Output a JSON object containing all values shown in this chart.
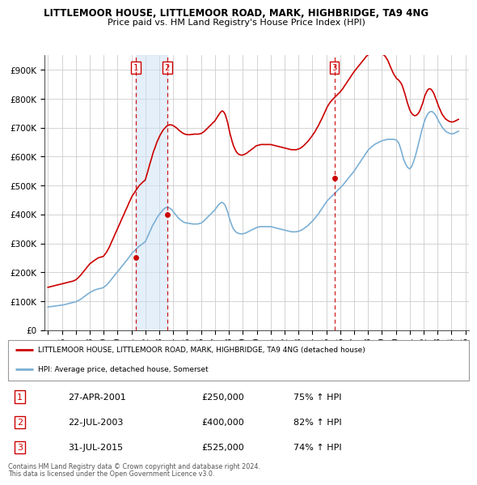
{
  "title": "LITTLEMOOR HOUSE, LITTLEMOOR ROAD, MARK, HIGHBRIDGE, TA9 4NG",
  "subtitle": "Price paid vs. HM Land Registry's House Price Index (HPI)",
  "hpi_label": "HPI: Average price, detached house, Somerset",
  "property_label": "LITTLEMOOR HOUSE, LITTLEMOOR ROAD, MARK, HIGHBRIDGE, TA9 4NG (detached house)",
  "red_line_color": "#cc0000",
  "blue_line_color": "#7bafd4",
  "background_color": "#ffffff",
  "grid_color": "#cccccc",
  "transactions": [
    {
      "num": 1,
      "date": "27-APR-2001",
      "year": 2001.32,
      "price": 250000,
      "pct": "75%",
      "dir": "↑"
    },
    {
      "num": 2,
      "date": "22-JUL-2003",
      "year": 2003.56,
      "price": 400000,
      "pct": "82%",
      "dir": "↑"
    },
    {
      "num": 3,
      "date": "31-JUL-2015",
      "year": 2015.58,
      "price": 525000,
      "pct": "74%",
      "dir": "↑"
    }
  ],
  "footnote1": "Contains HM Land Registry data © Crown copyright and database right 2024.",
  "footnote2": "This data is licensed under the Open Government Licence v3.0.",
  "hpi_data_years": [
    1995.0,
    1995.08,
    1995.17,
    1995.25,
    1995.33,
    1995.42,
    1995.5,
    1995.58,
    1995.67,
    1995.75,
    1995.83,
    1995.92,
    1996.0,
    1996.08,
    1996.17,
    1996.25,
    1996.33,
    1996.42,
    1996.5,
    1996.58,
    1996.67,
    1996.75,
    1996.83,
    1996.92,
    1997.0,
    1997.08,
    1997.17,
    1997.25,
    1997.33,
    1997.42,
    1997.5,
    1997.58,
    1997.67,
    1997.75,
    1997.83,
    1997.92,
    1998.0,
    1998.08,
    1998.17,
    1998.25,
    1998.33,
    1998.42,
    1998.5,
    1998.58,
    1998.67,
    1998.75,
    1998.83,
    1998.92,
    1999.0,
    1999.08,
    1999.17,
    1999.25,
    1999.33,
    1999.42,
    1999.5,
    1999.58,
    1999.67,
    1999.75,
    1999.83,
    1999.92,
    2000.0,
    2000.08,
    2000.17,
    2000.25,
    2000.33,
    2000.42,
    2000.5,
    2000.58,
    2000.67,
    2000.75,
    2000.83,
    2000.92,
    2001.0,
    2001.08,
    2001.17,
    2001.25,
    2001.33,
    2001.42,
    2001.5,
    2001.58,
    2001.67,
    2001.75,
    2001.83,
    2001.92,
    2002.0,
    2002.08,
    2002.17,
    2002.25,
    2002.33,
    2002.42,
    2002.5,
    2002.58,
    2002.67,
    2002.75,
    2002.83,
    2002.92,
    2003.0,
    2003.08,
    2003.17,
    2003.25,
    2003.33,
    2003.42,
    2003.5,
    2003.58,
    2003.67,
    2003.75,
    2003.83,
    2003.92,
    2004.0,
    2004.08,
    2004.17,
    2004.25,
    2004.33,
    2004.42,
    2004.5,
    2004.58,
    2004.67,
    2004.75,
    2004.83,
    2004.92,
    2005.0,
    2005.08,
    2005.17,
    2005.25,
    2005.33,
    2005.42,
    2005.5,
    2005.58,
    2005.67,
    2005.75,
    2005.83,
    2005.92,
    2006.0,
    2006.08,
    2006.17,
    2006.25,
    2006.33,
    2006.42,
    2006.5,
    2006.58,
    2006.67,
    2006.75,
    2006.83,
    2006.92,
    2007.0,
    2007.08,
    2007.17,
    2007.25,
    2007.33,
    2007.42,
    2007.5,
    2007.58,
    2007.67,
    2007.75,
    2007.83,
    2007.92,
    2008.0,
    2008.08,
    2008.17,
    2008.25,
    2008.33,
    2008.42,
    2008.5,
    2008.58,
    2008.67,
    2008.75,
    2008.83,
    2008.92,
    2009.0,
    2009.08,
    2009.17,
    2009.25,
    2009.33,
    2009.42,
    2009.5,
    2009.58,
    2009.67,
    2009.75,
    2009.83,
    2009.92,
    2010.0,
    2010.08,
    2010.17,
    2010.25,
    2010.33,
    2010.42,
    2010.5,
    2010.58,
    2010.67,
    2010.75,
    2010.83,
    2010.92,
    2011.0,
    2011.08,
    2011.17,
    2011.25,
    2011.33,
    2011.42,
    2011.5,
    2011.58,
    2011.67,
    2011.75,
    2011.83,
    2011.92,
    2012.0,
    2012.08,
    2012.17,
    2012.25,
    2012.33,
    2012.42,
    2012.5,
    2012.58,
    2012.67,
    2012.75,
    2012.83,
    2012.92,
    2013.0,
    2013.08,
    2013.17,
    2013.25,
    2013.33,
    2013.42,
    2013.5,
    2013.58,
    2013.67,
    2013.75,
    2013.83,
    2013.92,
    2014.0,
    2014.08,
    2014.17,
    2014.25,
    2014.33,
    2014.42,
    2014.5,
    2014.58,
    2014.67,
    2014.75,
    2014.83,
    2014.92,
    2015.0,
    2015.08,
    2015.17,
    2015.25,
    2015.33,
    2015.42,
    2015.5,
    2015.58,
    2015.67,
    2015.75,
    2015.83,
    2015.92,
    2016.0,
    2016.08,
    2016.17,
    2016.25,
    2016.33,
    2016.42,
    2016.5,
    2016.58,
    2016.67,
    2016.75,
    2016.83,
    2016.92,
    2017.0,
    2017.08,
    2017.17,
    2017.25,
    2017.33,
    2017.42,
    2017.5,
    2017.58,
    2017.67,
    2017.75,
    2017.83,
    2017.92,
    2018.0,
    2018.08,
    2018.17,
    2018.25,
    2018.33,
    2018.42,
    2018.5,
    2018.58,
    2018.67,
    2018.75,
    2018.83,
    2018.92,
    2019.0,
    2019.08,
    2019.17,
    2019.25,
    2019.33,
    2019.42,
    2019.5,
    2019.58,
    2019.67,
    2019.75,
    2019.83,
    2019.92,
    2020.0,
    2020.08,
    2020.17,
    2020.25,
    2020.33,
    2020.42,
    2020.5,
    2020.58,
    2020.67,
    2020.75,
    2020.83,
    2020.92,
    2021.0,
    2021.08,
    2021.17,
    2021.25,
    2021.33,
    2021.42,
    2021.5,
    2021.58,
    2021.67,
    2021.75,
    2021.83,
    2021.92,
    2022.0,
    2022.08,
    2022.17,
    2022.25,
    2022.33,
    2022.42,
    2022.5,
    2022.58,
    2022.67,
    2022.75,
    2022.83,
    2022.92,
    2023.0,
    2023.08,
    2023.17,
    2023.25,
    2023.33,
    2023.42,
    2023.5,
    2023.58,
    2023.67,
    2023.75,
    2023.83,
    2023.92,
    2024.0,
    2024.08,
    2024.17,
    2024.25,
    2024.33,
    2024.42,
    2024.5
  ],
  "hpi_data_values": [
    80000,
    80500,
    81000,
    81500,
    82000,
    82500,
    83000,
    83500,
    84000,
    84500,
    85000,
    85500,
    86000,
    87000,
    88000,
    89000,
    90000,
    91000,
    92000,
    93000,
    94000,
    95000,
    96000,
    97000,
    98000,
    100000,
    102000,
    104000,
    106000,
    109000,
    112000,
    115000,
    118000,
    121000,
    124000,
    127000,
    130000,
    132000,
    134000,
    136000,
    138000,
    140000,
    141000,
    142000,
    143000,
    144000,
    145000,
    146000,
    148000,
    151000,
    154000,
    158000,
    162000,
    167000,
    172000,
    177000,
    182000,
    187000,
    192000,
    197000,
    202000,
    207000,
    212000,
    217000,
    222000,
    227000,
    232000,
    237000,
    242000,
    247000,
    252000,
    258000,
    264000,
    268000,
    272000,
    276000,
    280000,
    284000,
    288000,
    291000,
    294000,
    297000,
    300000,
    303000,
    306000,
    315000,
    324000,
    333000,
    342000,
    351000,
    360000,
    367000,
    374000,
    381000,
    388000,
    395000,
    400000,
    405000,
    410000,
    415000,
    419000,
    422000,
    424000,
    425000,
    424000,
    422000,
    419000,
    415000,
    410000,
    405000,
    400000,
    395000,
    390000,
    386000,
    382000,
    379000,
    376000,
    374000,
    372000,
    371000,
    370000,
    370000,
    369000,
    368000,
    368000,
    367000,
    367000,
    367000,
    367000,
    367000,
    368000,
    369000,
    370000,
    373000,
    376000,
    380000,
    384000,
    388000,
    392000,
    396000,
    400000,
    404000,
    408000,
    412000,
    416000,
    422000,
    428000,
    433000,
    437000,
    440000,
    442000,
    440000,
    436000,
    430000,
    420000,
    408000,
    394000,
    380000,
    368000,
    358000,
    350000,
    344000,
    340000,
    337000,
    335000,
    334000,
    333000,
    333000,
    333000,
    334000,
    335000,
    337000,
    339000,
    341000,
    343000,
    345000,
    347000,
    349000,
    351000,
    353000,
    355000,
    356000,
    357000,
    358000,
    358000,
    358000,
    358000,
    358000,
    358000,
    358000,
    358000,
    358000,
    358000,
    357000,
    356000,
    355000,
    354000,
    353000,
    352000,
    351000,
    350000,
    349000,
    348000,
    347000,
    346000,
    345000,
    344000,
    343000,
    342000,
    341000,
    340000,
    340000,
    340000,
    340000,
    340000,
    341000,
    342000,
    343000,
    345000,
    347000,
    349000,
    352000,
    355000,
    358000,
    361000,
    365000,
    369000,
    373000,
    377000,
    381000,
    386000,
    391000,
    396000,
    401000,
    407000,
    413000,
    419000,
    425000,
    431000,
    437000,
    443000,
    448000,
    452000,
    456000,
    460000,
    464000,
    468000,
    472000,
    476000,
    480000,
    484000,
    488000,
    492000,
    496000,
    500000,
    505000,
    510000,
    515000,
    520000,
    525000,
    530000,
    535000,
    540000,
    545000,
    550000,
    556000,
    562000,
    568000,
    574000,
    580000,
    586000,
    592000,
    598000,
    604000,
    610000,
    616000,
    622000,
    626000,
    630000,
    634000,
    637000,
    640000,
    643000,
    645000,
    647000,
    649000,
    651000,
    653000,
    655000,
    656000,
    657000,
    658000,
    659000,
    660000,
    660000,
    660000,
    660000,
    660000,
    660000,
    659000,
    658000,
    655000,
    650000,
    642000,
    630000,
    616000,
    600000,
    588000,
    578000,
    570000,
    564000,
    560000,
    558000,
    562000,
    570000,
    580000,
    592000,
    605000,
    620000,
    636000,
    652000,
    668000,
    684000,
    700000,
    714000,
    726000,
    736000,
    744000,
    750000,
    754000,
    756000,
    756000,
    754000,
    750000,
    745000,
    738000,
    730000,
    722000,
    715000,
    708000,
    702000,
    696000,
    692000,
    688000,
    685000,
    683000,
    681000,
    680000,
    679000,
    679000,
    680000,
    682000,
    684000,
    686000,
    688000
  ],
  "red_data_years": [
    1995.0,
    1995.08,
    1995.17,
    1995.25,
    1995.33,
    1995.42,
    1995.5,
    1995.58,
    1995.67,
    1995.75,
    1995.83,
    1995.92,
    1996.0,
    1996.08,
    1996.17,
    1996.25,
    1996.33,
    1996.42,
    1996.5,
    1996.58,
    1996.67,
    1996.75,
    1996.83,
    1996.92,
    1997.0,
    1997.08,
    1997.17,
    1997.25,
    1997.33,
    1997.42,
    1997.5,
    1997.58,
    1997.67,
    1997.75,
    1997.83,
    1997.92,
    1998.0,
    1998.08,
    1998.17,
    1998.25,
    1998.33,
    1998.42,
    1998.5,
    1998.58,
    1998.67,
    1998.75,
    1998.83,
    1998.92,
    1999.0,
    1999.08,
    1999.17,
    1999.25,
    1999.33,
    1999.42,
    1999.5,
    1999.58,
    1999.67,
    1999.75,
    1999.83,
    1999.92,
    2000.0,
    2000.08,
    2000.17,
    2000.25,
    2000.33,
    2000.42,
    2000.5,
    2000.58,
    2000.67,
    2000.75,
    2000.83,
    2000.92,
    2001.0,
    2001.08,
    2001.17,
    2001.25,
    2001.33,
    2001.42,
    2001.5,
    2001.58,
    2001.67,
    2001.75,
    2001.83,
    2001.92,
    2002.0,
    2002.08,
    2002.17,
    2002.25,
    2002.33,
    2002.42,
    2002.5,
    2002.58,
    2002.67,
    2002.75,
    2002.83,
    2002.92,
    2003.0,
    2003.08,
    2003.17,
    2003.25,
    2003.33,
    2003.42,
    2003.5,
    2003.58,
    2003.67,
    2003.75,
    2003.83,
    2003.92,
    2004.0,
    2004.08,
    2004.17,
    2004.25,
    2004.33,
    2004.42,
    2004.5,
    2004.58,
    2004.67,
    2004.75,
    2004.83,
    2004.92,
    2005.0,
    2005.08,
    2005.17,
    2005.25,
    2005.33,
    2005.42,
    2005.5,
    2005.58,
    2005.67,
    2005.75,
    2005.83,
    2005.92,
    2006.0,
    2006.08,
    2006.17,
    2006.25,
    2006.33,
    2006.42,
    2006.5,
    2006.58,
    2006.67,
    2006.75,
    2006.83,
    2006.92,
    2007.0,
    2007.08,
    2007.17,
    2007.25,
    2007.33,
    2007.42,
    2007.5,
    2007.58,
    2007.67,
    2007.75,
    2007.83,
    2007.92,
    2008.0,
    2008.08,
    2008.17,
    2008.25,
    2008.33,
    2008.42,
    2008.5,
    2008.58,
    2008.67,
    2008.75,
    2008.83,
    2008.92,
    2009.0,
    2009.08,
    2009.17,
    2009.25,
    2009.33,
    2009.42,
    2009.5,
    2009.58,
    2009.67,
    2009.75,
    2009.83,
    2009.92,
    2010.0,
    2010.08,
    2010.17,
    2010.25,
    2010.33,
    2010.42,
    2010.5,
    2010.58,
    2010.67,
    2010.75,
    2010.83,
    2010.92,
    2011.0,
    2011.08,
    2011.17,
    2011.25,
    2011.33,
    2011.42,
    2011.5,
    2011.58,
    2011.67,
    2011.75,
    2011.83,
    2011.92,
    2012.0,
    2012.08,
    2012.17,
    2012.25,
    2012.33,
    2012.42,
    2012.5,
    2012.58,
    2012.67,
    2012.75,
    2012.83,
    2012.92,
    2013.0,
    2013.08,
    2013.17,
    2013.25,
    2013.33,
    2013.42,
    2013.5,
    2013.58,
    2013.67,
    2013.75,
    2013.83,
    2013.92,
    2014.0,
    2014.08,
    2014.17,
    2014.25,
    2014.33,
    2014.42,
    2014.5,
    2014.58,
    2014.67,
    2014.75,
    2014.83,
    2014.92,
    2015.0,
    2015.08,
    2015.17,
    2015.25,
    2015.33,
    2015.42,
    2015.5,
    2015.58,
    2015.67,
    2015.75,
    2015.83,
    2015.92,
    2016.0,
    2016.08,
    2016.17,
    2016.25,
    2016.33,
    2016.42,
    2016.5,
    2016.58,
    2016.67,
    2016.75,
    2016.83,
    2016.92,
    2017.0,
    2017.08,
    2017.17,
    2017.25,
    2017.33,
    2017.42,
    2017.5,
    2017.58,
    2017.67,
    2017.75,
    2017.83,
    2017.92,
    2018.0,
    2018.08,
    2018.17,
    2018.25,
    2018.33,
    2018.42,
    2018.5,
    2018.58,
    2018.67,
    2018.75,
    2018.83,
    2018.92,
    2019.0,
    2019.08,
    2019.17,
    2019.25,
    2019.33,
    2019.42,
    2019.5,
    2019.58,
    2019.67,
    2019.75,
    2019.83,
    2019.92,
    2020.0,
    2020.08,
    2020.17,
    2020.25,
    2020.33,
    2020.42,
    2020.5,
    2020.58,
    2020.67,
    2020.75,
    2020.83,
    2020.92,
    2021.0,
    2021.08,
    2021.17,
    2021.25,
    2021.33,
    2021.42,
    2021.5,
    2021.58,
    2021.67,
    2021.75,
    2021.83,
    2021.92,
    2022.0,
    2022.08,
    2022.17,
    2022.25,
    2022.33,
    2022.42,
    2022.5,
    2022.58,
    2022.67,
    2022.75,
    2022.83,
    2022.92,
    2023.0,
    2023.08,
    2023.17,
    2023.25,
    2023.33,
    2023.42,
    2023.5,
    2023.58,
    2023.67,
    2023.75,
    2023.83,
    2023.92,
    2024.0,
    2024.08,
    2024.17,
    2024.25,
    2024.33,
    2024.42,
    2024.5
  ],
  "red_data_values": [
    148000,
    149000,
    150000,
    151000,
    152000,
    153000,
    154000,
    155000,
    156000,
    157000,
    158000,
    159000,
    160000,
    161000,
    162000,
    163000,
    164000,
    165000,
    166000,
    167000,
    168000,
    169000,
    170000,
    172000,
    174000,
    177000,
    181000,
    185000,
    189000,
    194000,
    199000,
    204000,
    209000,
    214000,
    219000,
    224000,
    229000,
    232000,
    235000,
    238000,
    241000,
    244000,
    247000,
    249000,
    251000,
    252000,
    253000,
    254000,
    256000,
    261000,
    267000,
    273000,
    280000,
    288000,
    297000,
    306000,
    315000,
    324000,
    333000,
    342000,
    351000,
    360000,
    369000,
    378000,
    387000,
    396000,
    405000,
    414000,
    423000,
    432000,
    441000,
    450000,
    459000,
    466000,
    472000,
    478000,
    484000,
    490000,
    496000,
    501000,
    505000,
    509000,
    513000,
    516000,
    520000,
    534000,
    548000,
    562000,
    576000,
    590000,
    604000,
    617000,
    628000,
    639000,
    650000,
    660000,
    668000,
    676000,
    683000,
    690000,
    695000,
    700000,
    704000,
    707000,
    709000,
    710000,
    710000,
    709000,
    707000,
    705000,
    702000,
    699000,
    695000,
    691000,
    688000,
    685000,
    682000,
    680000,
    678000,
    677000,
    676000,
    676000,
    676000,
    676000,
    677000,
    677000,
    678000,
    678000,
    678000,
    678000,
    678000,
    679000,
    680000,
    682000,
    685000,
    688000,
    692000,
    696000,
    700000,
    704000,
    708000,
    712000,
    716000,
    720000,
    724000,
    730000,
    737000,
    743000,
    749000,
    754000,
    758000,
    757000,
    752000,
    744000,
    732000,
    716000,
    698000,
    680000,
    664000,
    650000,
    638000,
    628000,
    620000,
    614000,
    610000,
    607000,
    606000,
    605000,
    606000,
    607000,
    609000,
    611000,
    614000,
    617000,
    620000,
    623000,
    626000,
    629000,
    632000,
    636000,
    638000,
    639000,
    640000,
    641000,
    642000,
    642000,
    642000,
    642000,
    642000,
    642000,
    642000,
    642000,
    642000,
    641000,
    640000,
    639000,
    638000,
    637000,
    636000,
    635000,
    634000,
    633000,
    632000,
    631000,
    630000,
    629000,
    628000,
    627000,
    626000,
    625000,
    624000,
    624000,
    624000,
    624000,
    624000,
    625000,
    626000,
    628000,
    630000,
    633000,
    636000,
    640000,
    644000,
    648000,
    652000,
    657000,
    662000,
    668000,
    673000,
    679000,
    685000,
    692000,
    699000,
    706000,
    714000,
    722000,
    730000,
    738000,
    747000,
    756000,
    765000,
    773000,
    780000,
    786000,
    791000,
    796000,
    800000,
    804000,
    808000,
    812000,
    816000,
    820000,
    824000,
    829000,
    834000,
    840000,
    846000,
    852000,
    858000,
    864000,
    870000,
    876000,
    882000,
    888000,
    894000,
    899000,
    904000,
    909000,
    914000,
    919000,
    924000,
    929000,
    934000,
    939000,
    944000,
    949000,
    952000,
    954000,
    955000,
    956000,
    957000,
    957000,
    957000,
    957000,
    957000,
    957000,
    957000,
    956000,
    955000,
    953000,
    950000,
    946000,
    940000,
    933000,
    924000,
    914000,
    904000,
    895000,
    887000,
    880000,
    874000,
    869000,
    866000,
    862000,
    857000,
    850000,
    840000,
    828000,
    814000,
    800000,
    786000,
    773000,
    762000,
    754000,
    748000,
    744000,
    742000,
    742000,
    744000,
    748000,
    754000,
    762000,
    772000,
    784000,
    797000,
    810000,
    820000,
    828000,
    833000,
    835000,
    834000,
    830000,
    824000,
    816000,
    806000,
    795000,
    784000,
    773000,
    763000,
    754000,
    746000,
    740000,
    735000,
    730000,
    727000,
    724000,
    722000,
    721000,
    720000,
    720000,
    721000,
    723000,
    725000,
    727000,
    729000
  ],
  "ylim": [
    0,
    950000
  ],
  "yticks": [
    0,
    100000,
    200000,
    300000,
    400000,
    500000,
    600000,
    700000,
    800000,
    900000
  ],
  "xlim": [
    1994.75,
    2025.25
  ],
  "xticks": [
    1995,
    1996,
    1997,
    1998,
    1999,
    2000,
    2001,
    2002,
    2003,
    2004,
    2005,
    2006,
    2007,
    2008,
    2009,
    2010,
    2011,
    2012,
    2013,
    2014,
    2015,
    2016,
    2017,
    2018,
    2019,
    2020,
    2021,
    2022,
    2023,
    2024,
    2025
  ]
}
